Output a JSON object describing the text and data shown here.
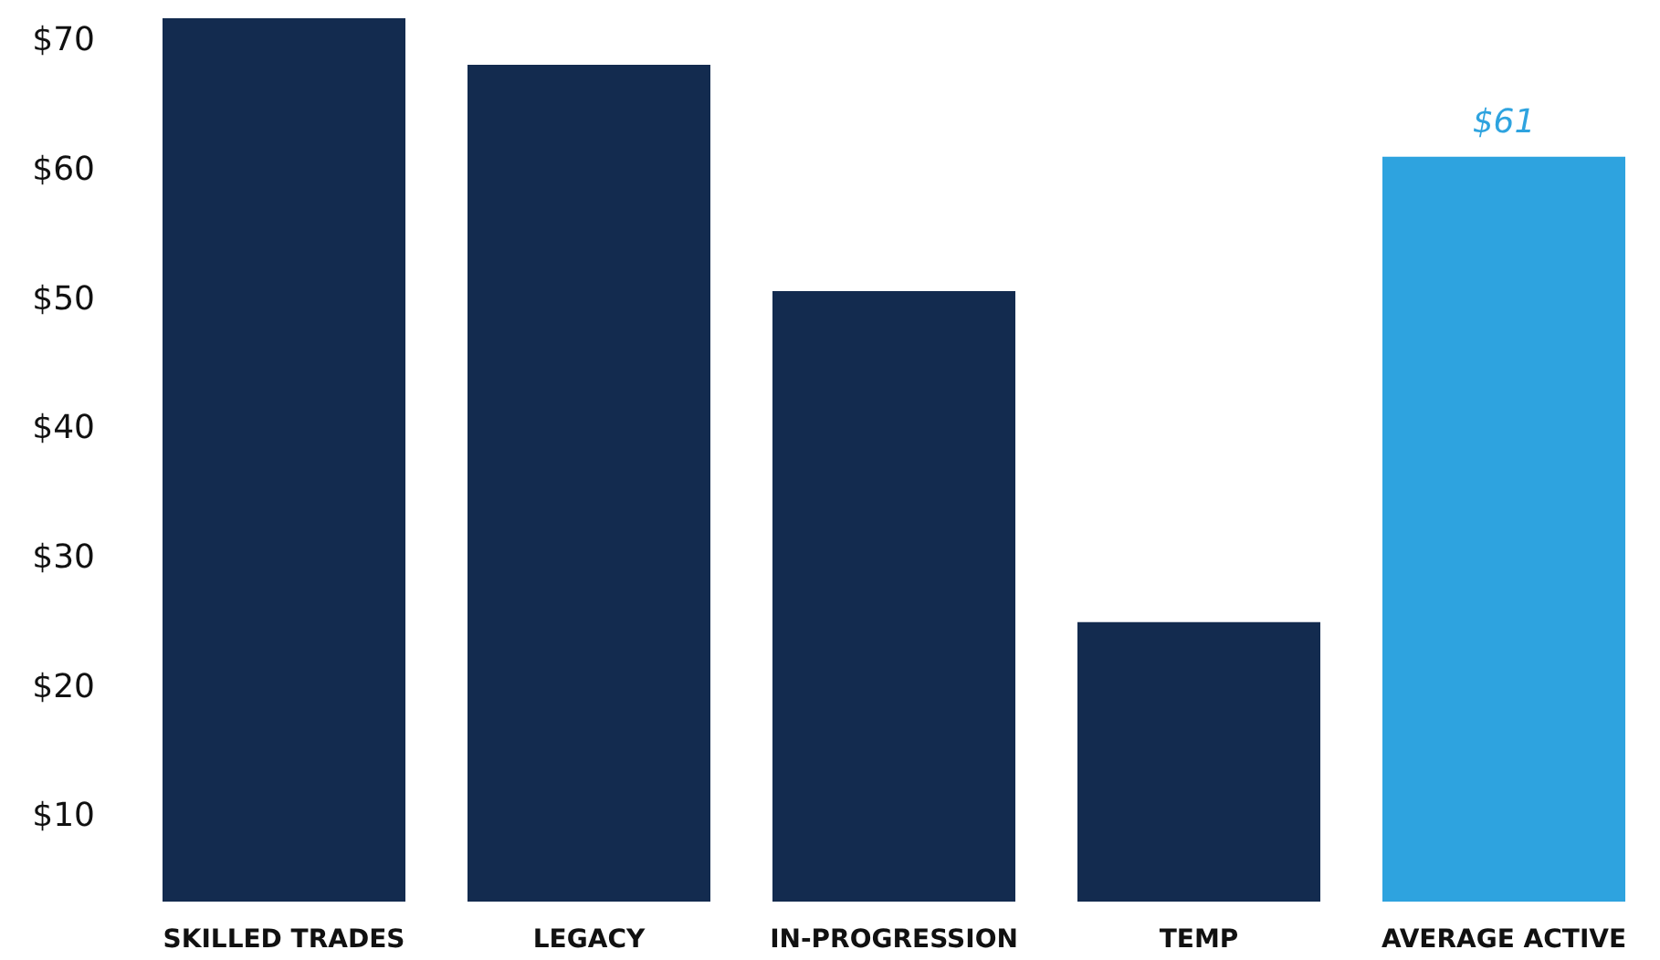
{
  "chart_data": {
    "type": "bar",
    "categories": [
      "SKILLED TRADES",
      "LEGACY",
      "IN-PROGRESSION",
      "TEMP",
      "AVERAGE ACTIVE"
    ],
    "values": [
      71.7,
      68.1,
      50.6,
      25,
      61
    ],
    "colors": [
      "#132b4f",
      "#132b4f",
      "#132b4f",
      "#132b4f",
      "#2ea3df"
    ],
    "value_labels": [
      null,
      null,
      null,
      null,
      "$61"
    ],
    "ylim": [
      3.4,
      71.7
    ],
    "yticks": [
      {
        "value": 10,
        "label": "$10"
      },
      {
        "value": 20,
        "label": "$20"
      },
      {
        "value": 30,
        "label": "$30"
      },
      {
        "value": 40,
        "label": "$40"
      },
      {
        "value": 50,
        "label": "$50"
      },
      {
        "value": 60,
        "label": "$60"
      },
      {
        "value": 70,
        "label": "$70"
      }
    ],
    "grid": false
  }
}
